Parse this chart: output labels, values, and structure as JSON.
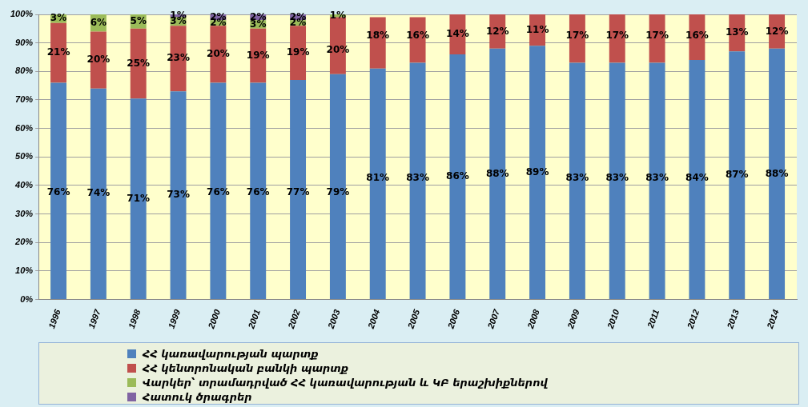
{
  "chart_data": {
    "type": "bar",
    "stacked": true,
    "categories": [
      "1996",
      "1997",
      "1998",
      "1999",
      "2000",
      "2001",
      "2002",
      "2003",
      "2004",
      "2005",
      "2006",
      "2007",
      "2008",
      "2009",
      "2010",
      "2011",
      "2012",
      "2013",
      "2014"
    ],
    "ylim": [
      0,
      100
    ],
    "yticks": [
      {
        "value": 0,
        "label": "0%"
      },
      {
        "value": 10,
        "label": "10%"
      },
      {
        "value": 20,
        "label": "20%"
      },
      {
        "value": 30,
        "label": "30%"
      },
      {
        "value": 40,
        "label": "40%"
      },
      {
        "value": 50,
        "label": "50%"
      },
      {
        "value": 60,
        "label": "60%"
      },
      {
        "value": 70,
        "label": "70%"
      },
      {
        "value": 80,
        "label": "80%"
      },
      {
        "value": 90,
        "label": "90%"
      },
      {
        "value": 100,
        "label": "100%"
      }
    ],
    "grid": "y",
    "legend": "bottom",
    "series": [
      {
        "name": "ՀՀ կառավարության պարտք",
        "color": "#4f81bd",
        "values": [
          76,
          74,
          70.5,
          73,
          76,
          76,
          77,
          79,
          81,
          83,
          86,
          88,
          89,
          83,
          83,
          83,
          84,
          87,
          88
        ],
        "value_labels": [
          "76%",
          "74%",
          "71%",
          "73%",
          "76%",
          "76%",
          "77%",
          "79%",
          "81%",
          "83%",
          "86%",
          "88%",
          "89%",
          "83%",
          "83%",
          "83%",
          "84%",
          "87%",
          "88%"
        ]
      },
      {
        "name": "ՀՀ կենտրոնական բանկի պարտք",
        "color": "#c0504d",
        "values": [
          21,
          20,
          24.5,
          23,
          20,
          19,
          19,
          20,
          18,
          16,
          14,
          12,
          11,
          17,
          17,
          17,
          16,
          13,
          12
        ],
        "value_labels": [
          "21%",
          "20%",
          "25%",
          "23%",
          "20%",
          "19%",
          "19%",
          "20%",
          "18%",
          "16%",
          "14%",
          "12%",
          "11%",
          "17%",
          "17%",
          "17%",
          "16%",
          "13%",
          "12%"
        ]
      },
      {
        "name": "Վարկեր՝ տրամադրված ՀՀ կառավարության և ԿԲ երաշխիքներով",
        "color": "#9bbb59",
        "values": [
          3,
          6,
          5,
          3,
          2,
          3,
          2,
          1,
          null,
          null,
          null,
          null,
          null,
          null,
          null,
          null,
          null,
          null,
          null
        ],
        "value_labels": [
          "3%",
          "6%",
          "5%",
          "3%",
          "2%",
          "3%",
          "2%",
          "1%",
          null,
          null,
          null,
          null,
          null,
          null,
          null,
          null,
          null,
          null,
          null
        ]
      },
      {
        "name": "Հատուկ ծրագրեր",
        "color": "#8064a2",
        "values": [
          null,
          null,
          null,
          1,
          2,
          2,
          2,
          null,
          null,
          null,
          null,
          null,
          null,
          null,
          null,
          null,
          null,
          null,
          null
        ],
        "value_labels": [
          null,
          null,
          null,
          "1%",
          "2%",
          "2%",
          "2%",
          null,
          null,
          null,
          null,
          null,
          null,
          null,
          null,
          null,
          null,
          null,
          null
        ]
      }
    ]
  }
}
